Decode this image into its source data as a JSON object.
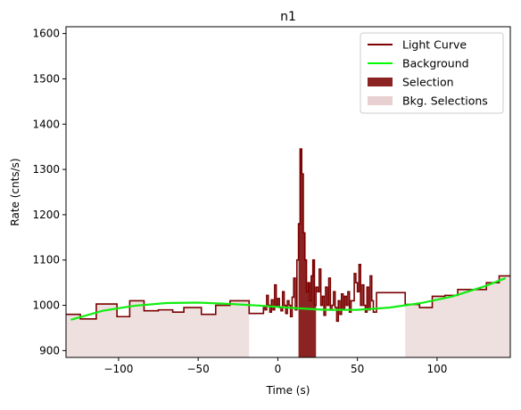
{
  "chart_data": {
    "type": "line",
    "title": "n1",
    "xlabel": "Time (s)",
    "ylabel": "Rate (cnts/s)",
    "xlim": [
      -133,
      146
    ],
    "ylim": [
      885,
      1615
    ],
    "xticks": [
      -100,
      -50,
      0,
      50,
      100
    ],
    "yticks": [
      900,
      1000,
      1100,
      1200,
      1300,
      1400,
      1500,
      1600
    ],
    "legend": {
      "placement": "top-right",
      "entries": [
        {
          "label": "Light Curve",
          "style": "line",
          "color": "#800000"
        },
        {
          "label": "Background",
          "style": "line",
          "color": "#00ff00"
        },
        {
          "label": "Selection",
          "style": "patch",
          "color": "#8b2323"
        },
        {
          "label": "Bkg. Selections",
          "style": "patch",
          "color": "#e8d0d0"
        }
      ]
    },
    "colors": {
      "light_curve": "#7a0000",
      "background": "#11ee11",
      "selection": "#8b2323",
      "bkg_selection": "#efe0e0"
    },
    "bkg_selections": [
      [
        -133,
        -18
      ],
      [
        80,
        146
      ]
    ],
    "selection": [
      13,
      24
    ],
    "light_curve": [
      [
        -133,
        980
      ],
      [
        -124,
        970
      ],
      [
        -114,
        1003
      ],
      [
        -101,
        975
      ],
      [
        -93,
        1010
      ],
      [
        -84,
        988
      ],
      [
        -75,
        990
      ],
      [
        -66,
        985
      ],
      [
        -59,
        995
      ],
      [
        -53,
        995
      ],
      [
        -48,
        980
      ],
      [
        -39,
        1000
      ],
      [
        -30,
        1010
      ],
      [
        -18,
        982
      ],
      [
        -9,
        995
      ],
      [
        -8,
        990
      ],
      [
        -7,
        1022
      ],
      [
        -6,
        1000
      ],
      [
        -5,
        985
      ],
      [
        -4,
        1012
      ],
      [
        -3,
        990
      ],
      [
        -2,
        1045
      ],
      [
        -1,
        1000
      ],
      [
        0,
        1015
      ],
      [
        1,
        995
      ],
      [
        2,
        988
      ],
      [
        3,
        1030
      ],
      [
        4,
        1000
      ],
      [
        5,
        982
      ],
      [
        6,
        1010
      ],
      [
        7,
        1000
      ],
      [
        8,
        975
      ],
      [
        9,
        1018
      ],
      [
        10,
        1060
      ],
      [
        11,
        990
      ],
      [
        12,
        1100
      ],
      [
        13,
        1180
      ],
      [
        14,
        1345
      ],
      [
        15,
        1290
      ],
      [
        16,
        1160
      ],
      [
        17,
        1100
      ],
      [
        18,
        1030
      ],
      [
        19,
        1050
      ],
      [
        20,
        1010
      ],
      [
        21,
        1065
      ],
      [
        22,
        1100
      ],
      [
        23,
        1000
      ],
      [
        24,
        1040
      ],
      [
        25,
        1030
      ],
      [
        26,
        1080
      ],
      [
        27,
        1000
      ],
      [
        28,
        1020
      ],
      [
        29,
        978
      ],
      [
        30,
        1040
      ],
      [
        31,
        1000
      ],
      [
        32,
        1060
      ],
      [
        33,
        990
      ],
      [
        34,
        1000
      ],
      [
        35,
        1030
      ],
      [
        36,
        995
      ],
      [
        37,
        965
      ],
      [
        38,
        1010
      ],
      [
        39,
        980
      ],
      [
        40,
        1025
      ],
      [
        41,
        990
      ],
      [
        42,
        1020
      ],
      [
        43,
        1000
      ],
      [
        44,
        1030
      ],
      [
        45,
        985
      ],
      [
        46,
        1010
      ],
      [
        47,
        1010
      ],
      [
        48,
        1070
      ],
      [
        49,
        1050
      ],
      [
        50,
        1030
      ],
      [
        51,
        1090
      ],
      [
        52,
        1000
      ],
      [
        53,
        1045
      ],
      [
        54,
        1000
      ],
      [
        55,
        985
      ],
      [
        56,
        1040
      ],
      [
        57,
        990
      ],
      [
        58,
        1065
      ],
      [
        59,
        1010
      ],
      [
        60,
        985
      ],
      [
        62,
        1028
      ],
      [
        71,
        1028
      ],
      [
        80,
        1002
      ],
      [
        89,
        995
      ],
      [
        97,
        1020
      ],
      [
        105,
        1022
      ],
      [
        113,
        1035
      ],
      [
        122,
        1035
      ],
      [
        131,
        1050
      ],
      [
        139,
        1065
      ]
    ],
    "light_curve_end": 146,
    "background": [
      [
        -130,
        968
      ],
      [
        -110,
        988
      ],
      [
        -90,
        999
      ],
      [
        -70,
        1005
      ],
      [
        -50,
        1006
      ],
      [
        -30,
        1003
      ],
      [
        -10,
        999
      ],
      [
        10,
        994
      ],
      [
        30,
        990
      ],
      [
        50,
        990
      ],
      [
        70,
        995
      ],
      [
        90,
        1005
      ],
      [
        110,
        1020
      ],
      [
        130,
        1042
      ],
      [
        143,
        1060
      ]
    ]
  }
}
